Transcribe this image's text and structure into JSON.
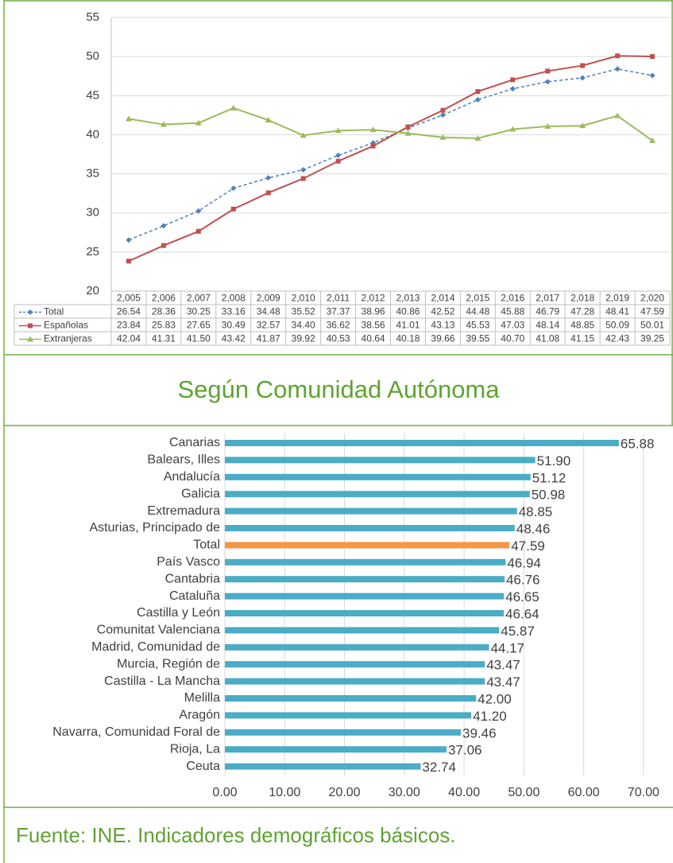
{
  "chart_data": [
    {
      "type": "line",
      "categories": [
        "2,005",
        "2,006",
        "2,007",
        "2,008",
        "2,009",
        "2,010",
        "2,011",
        "2,012",
        "2,013",
        "2,014",
        "2,015",
        "2,016",
        "2,017",
        "2,018",
        "2,019",
        "2,020"
      ],
      "ylim": [
        20,
        55
      ],
      "yticks": [
        20,
        25,
        30,
        35,
        40,
        45,
        50,
        55
      ],
      "grid": true,
      "series": [
        {
          "name": "Total",
          "color": "#4f81bd",
          "dashed": true,
          "marker": "diamond",
          "values": [
            26.54,
            28.36,
            30.25,
            33.16,
            34.48,
            35.52,
            37.37,
            38.96,
            40.86,
            42.52,
            44.48,
            45.88,
            46.79,
            47.28,
            48.41,
            47.59
          ],
          "value_labels": [
            "26.54",
            "28.36",
            "30.25",
            "33.16",
            "34.48",
            "35.52",
            "37.37",
            "38.96",
            "40.86",
            "42.52",
            "44.48",
            "45.88",
            "46.79",
            "47.28",
            "48.41",
            "47.59"
          ]
        },
        {
          "name": "Españolas",
          "color": "#c0504d",
          "dashed": false,
          "marker": "square",
          "values": [
            23.84,
            25.83,
            27.65,
            30.49,
            32.57,
            34.4,
            36.62,
            38.56,
            41.01,
            43.13,
            45.53,
            47.03,
            48.14,
            48.85,
            50.09,
            50.01
          ],
          "value_labels": [
            "23.84",
            "25.83",
            "27.65",
            "30.49",
            "32.57",
            "34.40",
            "36.62",
            "38.56",
            "41.01",
            "43.13",
            "45.53",
            "47.03",
            "48.14",
            "48.85",
            "50.09",
            "50.01"
          ]
        },
        {
          "name": "Extranjeras",
          "color": "#9bbb59",
          "dashed": false,
          "marker": "triangle",
          "values": [
            42.04,
            41.31,
            41.5,
            43.42,
            41.87,
            39.92,
            40.53,
            40.64,
            40.18,
            39.66,
            39.55,
            40.7,
            41.08,
            41.15,
            42.43,
            39.25
          ],
          "value_labels": [
            "42.04",
            "41.31",
            "41.50",
            "43.42",
            "41.87",
            "39.92",
            "40.53",
            "40.64",
            "40.18",
            "39.66",
            "39.55",
            "40.70",
            "41.08",
            "41.15",
            "42.43",
            "39.25"
          ]
        }
      ]
    },
    {
      "type": "hbar",
      "categories": [
        "Canarias",
        "Balears, Illes",
        "Andalucía",
        "Galicia",
        "Extremadura",
        "Asturias, Principado de",
        "Total",
        "País Vasco",
        "Cantabria",
        "Cataluña",
        "Castilla y León",
        "Comunitat Valenciana",
        "Madrid, Comunidad de",
        "Murcia, Región de",
        "Castilla - La Mancha",
        "Melilla",
        "Aragón",
        "Navarra, Comunidad Foral de",
        "Rioja, La",
        "Ceuta"
      ],
      "values": [
        65.88,
        51.9,
        51.12,
        50.98,
        48.85,
        48.46,
        47.59,
        46.94,
        46.76,
        46.65,
        46.64,
        45.87,
        44.17,
        43.47,
        43.47,
        42.0,
        41.2,
        39.46,
        37.06,
        32.74
      ],
      "value_labels": [
        "65.88",
        "51.90",
        "51.12",
        "50.98",
        "48.85",
        "48.46",
        "47.59",
        "46.94",
        "46.76",
        "46.65",
        "46.64",
        "45.87",
        "44.17",
        "43.47",
        "43.47",
        "42.00",
        "41.20",
        "39.46",
        "37.06",
        "32.74"
      ],
      "colors": [
        "#4bacc6",
        "#4bacc6",
        "#4bacc6",
        "#4bacc6",
        "#4bacc6",
        "#4bacc6",
        "#f79646",
        "#4bacc6",
        "#4bacc6",
        "#4bacc6",
        "#4bacc6",
        "#4bacc6",
        "#4bacc6",
        "#4bacc6",
        "#4bacc6",
        "#4bacc6",
        "#4bacc6",
        "#4bacc6",
        "#4bacc6",
        "#4bacc6"
      ],
      "xlim": [
        0,
        74
      ],
      "xticks": [
        {
          "value": 0,
          "label": "0.00"
        },
        {
          "value": 10,
          "label": "10.00"
        },
        {
          "value": 20,
          "label": "20.00"
        },
        {
          "value": 30,
          "label": "30.00"
        },
        {
          "value": 40,
          "label": "40.00"
        },
        {
          "value": 50,
          "label": "50.00"
        },
        {
          "value": 60,
          "label": "60.00"
        },
        {
          "value": 70,
          "label": "70.00"
        }
      ],
      "grid": true
    }
  ],
  "section_title": "Según Comunidad Autónoma",
  "source": "Fuente: INE. Indicadores demográficos básicos."
}
